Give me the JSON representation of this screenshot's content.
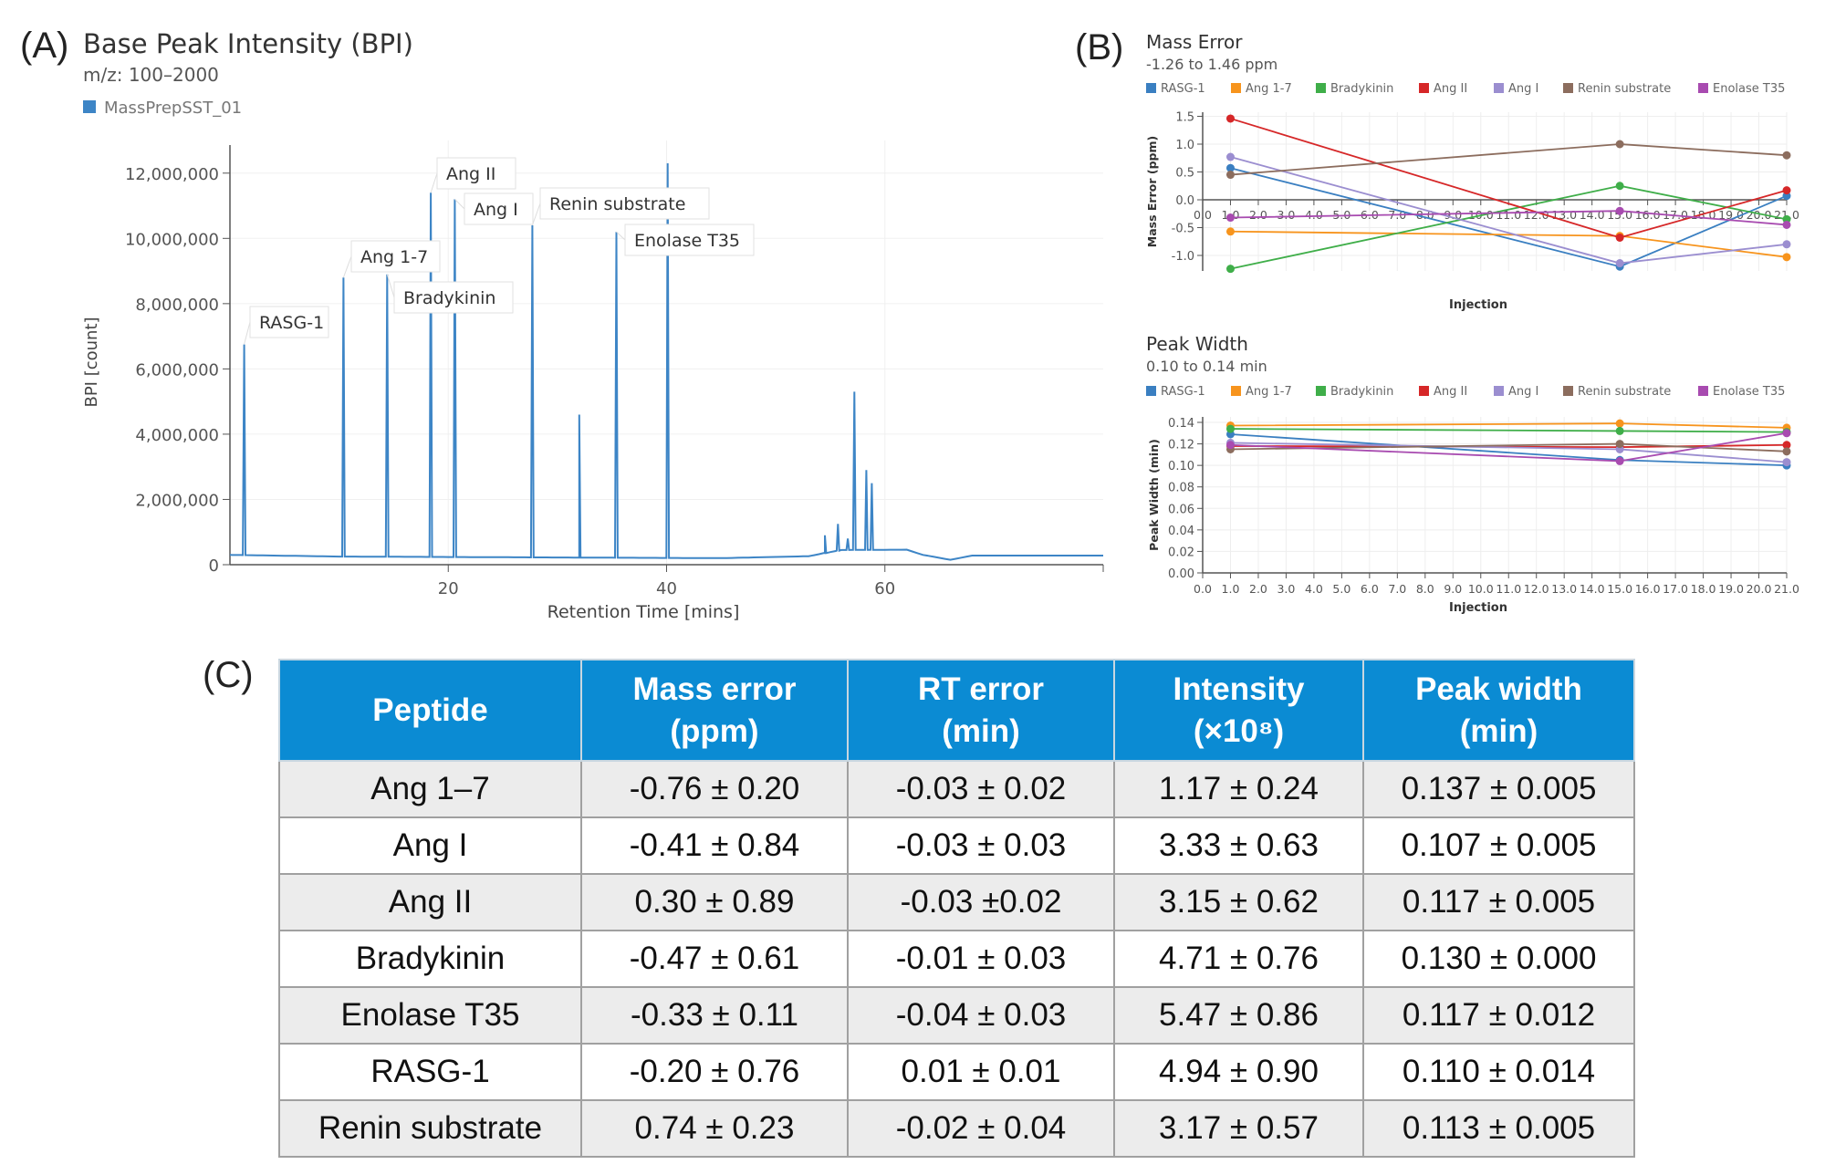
{
  "panel_labels": {
    "a": "(A)",
    "b": "(B)",
    "c": "(C)"
  },
  "chart_data": [
    {
      "type": "line",
      "title": "Base Peak Intensity (BPI)",
      "subtitle": "m/z: 100–2000",
      "legend": [
        {
          "name": "MassPrepSST_01",
          "color": "#3d85c6"
        }
      ],
      "xlabel": "Retention Time [mins]",
      "ylabel": "BPI [count]",
      "xlim": [
        0,
        80
      ],
      "ylim": [
        0,
        13000000
      ],
      "x_ticks": [
        20,
        40,
        60
      ],
      "y_ticks": [
        0,
        2000000,
        4000000,
        6000000,
        8000000,
        10000000,
        12000000
      ],
      "y_tick_labels": [
        "0",
        "2,000,000",
        "4,000,000",
        "6,000,000",
        "8,000,000",
        "10,000,000",
        "12,000,000"
      ],
      "grid": true,
      "baseline": [
        [
          0,
          300000
        ],
        [
          10,
          250000
        ],
        [
          45,
          200000
        ],
        [
          53,
          260000
        ],
        [
          56,
          450000
        ],
        [
          62,
          460000
        ],
        [
          63.5,
          300000
        ],
        [
          66,
          150000
        ],
        [
          68,
          280000
        ],
        [
          80,
          280000
        ]
      ],
      "peaks": [
        {
          "rt": 1.3,
          "intensity": 6750000,
          "label": "RASG-1"
        },
        {
          "rt": 10.4,
          "intensity": 8800000,
          "label": "Ang 1-7"
        },
        {
          "rt": 14.4,
          "intensity": 8900000,
          "label": "Bradykinin"
        },
        {
          "rt": 18.4,
          "intensity": 11400000,
          "label": "Ang II"
        },
        {
          "rt": 20.6,
          "intensity": 11200000,
          "label": "Ang I"
        },
        {
          "rt": 27.7,
          "intensity": 10400000,
          "label": "Renin substrate"
        },
        {
          "rt": 32.0,
          "intensity": 4600000,
          "label": ""
        },
        {
          "rt": 35.4,
          "intensity": 10200000,
          "label": "Enolase T35"
        },
        {
          "rt": 40.1,
          "intensity": 12300000,
          "label": ""
        },
        {
          "rt": 54.5,
          "intensity": 900000,
          "label": ""
        },
        {
          "rt": 55.7,
          "intensity": 1250000,
          "label": ""
        },
        {
          "rt": 56.6,
          "intensity": 800000,
          "label": ""
        },
        {
          "rt": 57.2,
          "intensity": 5300000,
          "label": ""
        },
        {
          "rt": 58.3,
          "intensity": 2900000,
          "label": ""
        },
        {
          "rt": 58.8,
          "intensity": 2500000,
          "label": ""
        }
      ]
    },
    {
      "type": "line",
      "title": "Mass Error",
      "subtitle": "-1.26 to 1.46 ppm",
      "xlabel": "Injection",
      "ylabel": "Mass Error (ppm)",
      "xlim": [
        0,
        21
      ],
      "ylim": [
        -1.26,
        1.5
      ],
      "y_ticks": [
        -1.0,
        -0.5,
        0.0,
        0.5,
        1.0,
        1.5
      ],
      "y_tick_labels": [
        "-1.0",
        "-0.5",
        "0.0",
        "0.5",
        "1.0",
        "1.5"
      ],
      "x_tick_labels": [
        "0.0",
        "1.0",
        "2.0",
        "3.0",
        "4.0",
        "5.0",
        "6.0",
        "7.0",
        "8.0",
        "9.0",
        "10.0",
        "11.0",
        "12.0",
        "13.0",
        "14.0",
        "15.0",
        "16.0",
        "17.0",
        "18.0",
        "19.0",
        "20.0",
        "21.0"
      ],
      "grid": true,
      "legend_position": "top",
      "x": [
        1,
        15,
        21
      ],
      "series": [
        {
          "name": "RASG-1",
          "color": "#3a7fc1",
          "values": [
            0.57,
            -1.2,
            0.07
          ]
        },
        {
          "name": "Ang 1-7",
          "color": "#f7941d",
          "values": [
            -0.57,
            -0.65,
            -1.03
          ]
        },
        {
          "name": "Bradykinin",
          "color": "#3fae49",
          "values": [
            -1.24,
            0.25,
            -0.35
          ]
        },
        {
          "name": "Ang II",
          "color": "#d62728",
          "values": [
            1.46,
            -0.68,
            0.17
          ]
        },
        {
          "name": "Ang I",
          "color": "#9b8ed0",
          "values": [
            0.77,
            -1.14,
            -0.8
          ]
        },
        {
          "name": "Renin substrate",
          "color": "#8c6d5e",
          "values": [
            0.45,
            1.0,
            0.8
          ]
        },
        {
          "name": "Enolase T35",
          "color": "#a84bb0",
          "values": [
            -0.32,
            -0.2,
            -0.45
          ]
        }
      ]
    },
    {
      "type": "line",
      "title": "Peak Width",
      "subtitle": "0.10 to 0.14 min",
      "xlabel": "Injection",
      "ylabel": "Peak Width (min)",
      "xlim": [
        0,
        21
      ],
      "ylim": [
        0,
        0.14
      ],
      "y_ticks": [
        0,
        0.02,
        0.04,
        0.06,
        0.08,
        0.1,
        0.12,
        0.14
      ],
      "y_tick_labels": [
        "0.00",
        "0.02",
        "0.04",
        "0.06",
        "0.08",
        "0.10",
        "0.12",
        "0.14"
      ],
      "x_tick_labels": [
        "0.0",
        "1.0",
        "2.0",
        "3.0",
        "4.0",
        "5.0",
        "6.0",
        "7.0",
        "8.0",
        "9.0",
        "10.0",
        "11.0",
        "12.0",
        "13.0",
        "14.0",
        "15.0",
        "16.0",
        "17.0",
        "18.0",
        "19.0",
        "20.0",
        "21.0"
      ],
      "grid": true,
      "legend_position": "top",
      "x": [
        1,
        15,
        21
      ],
      "series": [
        {
          "name": "RASG-1",
          "color": "#3a7fc1",
          "values": [
            0.129,
            0.105,
            0.1
          ]
        },
        {
          "name": "Ang 1-7",
          "color": "#f7941d",
          "values": [
            0.137,
            0.139,
            0.135
          ]
        },
        {
          "name": "Bradykinin",
          "color": "#3fae49",
          "values": [
            0.134,
            0.132,
            0.131
          ]
        },
        {
          "name": "Ang II",
          "color": "#d62728",
          "values": [
            0.118,
            0.117,
            0.119
          ]
        },
        {
          "name": "Ang I",
          "color": "#9b8ed0",
          "values": [
            0.121,
            0.115,
            0.103
          ]
        },
        {
          "name": "Renin substrate",
          "color": "#8c6d5e",
          "values": [
            0.115,
            0.12,
            0.113
          ]
        },
        {
          "name": "Enolase T35",
          "color": "#a84bb0",
          "values": [
            0.119,
            0.104,
            0.13
          ]
        }
      ]
    },
    {
      "type": "table",
      "headers": [
        [
          "Peptide"
        ],
        [
          "Mass error",
          "(ppm)"
        ],
        [
          "RT error",
          "(min)"
        ],
        [
          "Intensity",
          "(×10⁸)"
        ],
        [
          "Peak width",
          "(min)"
        ]
      ],
      "rows": [
        [
          "Ang 1–7",
          "-0.76 ± 0.20",
          "-0.03 ± 0.02",
          "1.17 ± 0.24",
          "0.137 ± 0.005"
        ],
        [
          "Ang I",
          "-0.41 ± 0.84",
          "-0.03 ± 0.03",
          "3.33 ± 0.63",
          "0.107 ± 0.005"
        ],
        [
          "Ang II",
          "0.30 ± 0.89",
          "-0.03 ±0.02",
          "3.15 ± 0.62",
          "0.117 ± 0.005"
        ],
        [
          "Bradykinin",
          "-0.47 ± 0.61",
          "-0.01 ± 0.03",
          "4.71 ± 0.76",
          "0.130 ± 0.000"
        ],
        [
          "Enolase T35",
          "-0.33 ± 0.11",
          "-0.04 ± 0.03",
          "5.47 ± 0.86",
          "0.117 ± 0.012"
        ],
        [
          "RASG-1",
          "-0.20 ± 0.76",
          "0.01 ± 0.01",
          "4.94 ± 0.90",
          "0.110 ± 0.014"
        ],
        [
          "Renin substrate",
          "0.74 ± 0.23",
          "-0.02 ± 0.04",
          "3.17 ± 0.57",
          "0.113 ± 0.005"
        ]
      ],
      "header_color": "#0b8bd3"
    }
  ]
}
